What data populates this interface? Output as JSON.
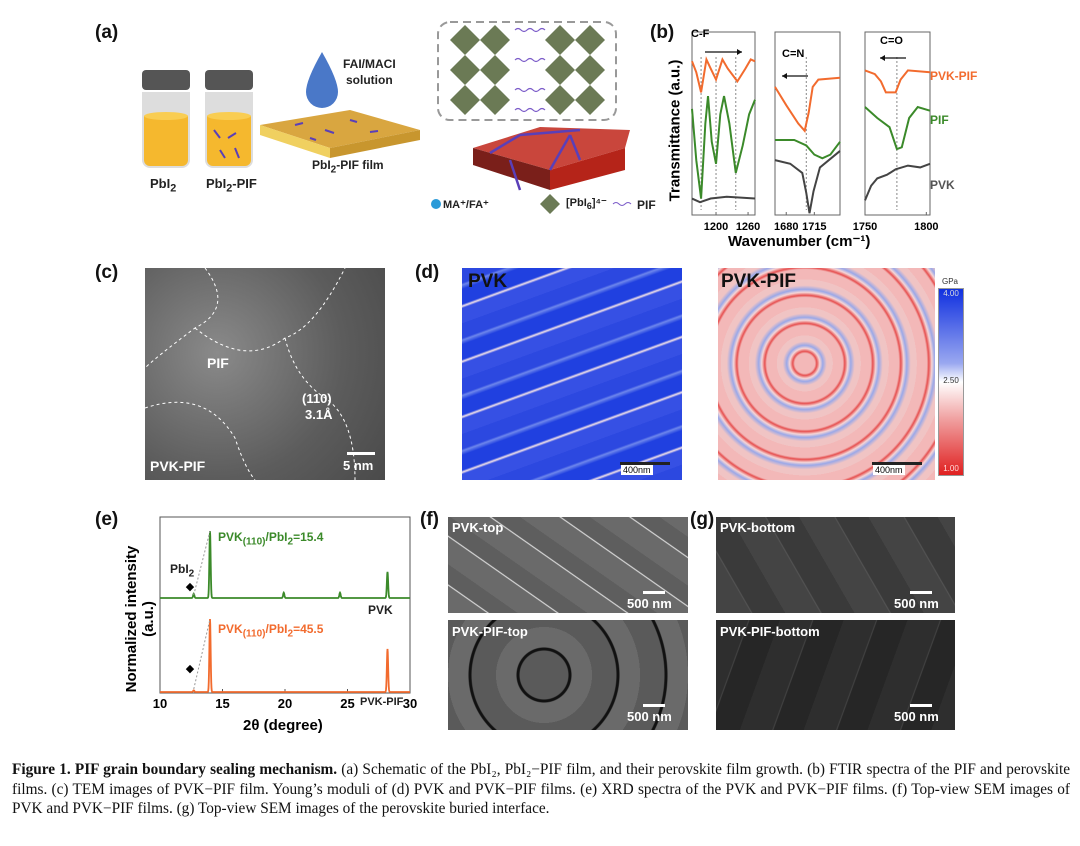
{
  "panels": {
    "a": {
      "label": "(a)",
      "vial1": "PbI",
      "vial1_sub": "2",
      "vial2": "PbI",
      "vial2_sub": "2",
      "vial2_suffix": "-PIF",
      "solution_line1": "FAI/MACI",
      "solution_line2": "solution",
      "film_prefix": "PbI",
      "film_sub": "2",
      "film_suffix": "-PIF film",
      "legend": {
        "cation": "MA⁺/FA⁺",
        "octa": "[PbI",
        "octa_sub": "6",
        "octa_sup": "]⁴⁻",
        "pif": "PIF"
      }
    },
    "b": {
      "label": "(b)",
      "ylabel": "Transmittance (a.u.)",
      "xlabel": "Wavenumber (cm⁻¹)",
      "annot": [
        "C-F",
        "C=N",
        "C=O"
      ],
      "legend": [
        "PVK-PIF",
        "PIF",
        "PVK"
      ]
    },
    "c": {
      "label": "(c)",
      "pif": "PIF",
      "plane": "(110)",
      "spacing": "3.1Å",
      "sample": "PVK-PIF",
      "scale": "5 nm"
    },
    "d": {
      "label": "(d)",
      "left_title": "PVK",
      "right_title": "PVK-PIF",
      "scale": "400nm",
      "colorbar": {
        "unit": "GPa",
        "max": "4.00",
        "mid": "2.50",
        "min": "1.00"
      }
    },
    "e": {
      "label": "(e)"
    },
    "f": {
      "label": "(f)",
      "top": "PVK-top",
      "bottom": "PVK-PIF-top",
      "scale": "500 nm"
    },
    "g": {
      "label": "(g)",
      "top": "PVK-bottom",
      "bottom": "PVK-PIF-bottom",
      "scale": "500 nm"
    }
  },
  "colors": {
    "orange": "#f26b2e",
    "green": "#3b8a2a",
    "grey": "#444444",
    "pif_purple": "#6a4fc4",
    "crystal_red": "#c0281e"
  },
  "chart_data": [
    {
      "type": "line",
      "id": "ftir",
      "ylabel": "Transmittance (a.u.)",
      "xlabel": "Wavenumber (cm⁻¹)",
      "windows": [
        {
          "annotation": "C-F",
          "shift": "right",
          "xlim": [
            1155,
            1273
          ],
          "ticks": [
            "1200",
            "1260"
          ],
          "tick_values": [
            1200,
            1260
          ],
          "markers": [
            1172,
            1200,
            1237
          ],
          "series": [
            {
              "name": "PVK-PIF",
              "color": "#f26b2e",
              "points": [
                [
                  1155,
                  8.4
                ],
                [
                  1163,
                  7.8
                ],
                [
                  1172,
                  6.7
                ],
                [
                  1182,
                  8.5
                ],
                [
                  1190,
                  8.0
                ],
                [
                  1200,
                  7.4
                ],
                [
                  1212,
                  8.5
                ],
                [
                  1222,
                  8.0
                ],
                [
                  1240,
                  7.3
                ],
                [
                  1255,
                  8.0
                ],
                [
                  1265,
                  8.5
                ],
                [
                  1273,
                  8.4
                ]
              ]
            },
            {
              "name": "PIF",
              "color": "#3b8a2a",
              "points": [
                [
                  1155,
                  5.8
                ],
                [
                  1163,
                  3.0
                ],
                [
                  1172,
                  0.9
                ],
                [
                  1180,
                  5.0
                ],
                [
                  1185,
                  6.5
                ],
                [
                  1192,
                  4.0
                ],
                [
                  1200,
                  2.8
                ],
                [
                  1208,
                  5.5
                ],
                [
                  1215,
                  6.5
                ],
                [
                  1225,
                  5.0
                ],
                [
                  1237,
                  2.3
                ],
                [
                  1250,
                  3.8
                ],
                [
                  1262,
                  5.5
                ],
                [
                  1273,
                  6.3
                ]
              ]
            },
            {
              "name": "PVK",
              "color": "#444444",
              "points": [
                [
                  1155,
                  0.9
                ],
                [
                  1170,
                  0.7
                ],
                [
                  1190,
                  0.9
                ],
                [
                  1220,
                  1.0
                ],
                [
                  1273,
                  0.9
                ]
              ]
            }
          ]
        },
        {
          "annotation": "C=N",
          "shift": "left",
          "xlim": [
            1666,
            1747
          ],
          "ticks": [
            "1680",
            "1715"
          ],
          "tick_values": [
            1680,
            1715
          ],
          "markers": [
            1705
          ],
          "series": [
            {
              "name": "PVK-PIF",
              "color": "#f26b2e",
              "points": [
                [
                  1666,
                  7.0
                ],
                [
                  1680,
                  6.0
                ],
                [
                  1695,
                  5.0
                ],
                [
                  1703,
                  4.6
                ],
                [
                  1708,
                  5.6
                ],
                [
                  1713,
                  7.0
                ],
                [
                  1720,
                  7.4
                ],
                [
                  1747,
                  7.5
                ]
              ]
            },
            {
              "name": "PIF",
              "color": "#3b8a2a",
              "points": [
                [
                  1666,
                  4.1
                ],
                [
                  1690,
                  4.1
                ],
                [
                  1705,
                  3.8
                ],
                [
                  1715,
                  3.3
                ],
                [
                  1725,
                  3.1
                ],
                [
                  1735,
                  3.3
                ],
                [
                  1747,
                  4.0
                ]
              ]
            },
            {
              "name": "PVK",
              "color": "#444444",
              "points": [
                [
                  1666,
                  3.0
                ],
                [
                  1685,
                  2.8
                ],
                [
                  1700,
                  2.3
                ],
                [
                  1705,
                  1.2
                ],
                [
                  1709,
                  0.1
                ],
                [
                  1714,
                  1.3
                ],
                [
                  1722,
                  2.6
                ],
                [
                  1747,
                  3.5
                ]
              ]
            }
          ]
        },
        {
          "annotation": "C=O",
          "shift": "left",
          "xlim": [
            1750,
            1803
          ],
          "ticks": [
            "1750",
            "1800"
          ],
          "tick_values": [
            1750,
            1800
          ],
          "markers": [
            1776
          ],
          "series": [
            {
              "name": "PVK-PIF",
              "color": "#f26b2e",
              "points": [
                [
                  1750,
                  7.9
                ],
                [
                  1758,
                  7.7
                ],
                [
                  1763,
                  7.3
                ],
                [
                  1767,
                  6.7
                ],
                [
                  1775,
                  6.7
                ],
                [
                  1779,
                  7.4
                ],
                [
                  1785,
                  7.9
                ],
                [
                  1803,
                  7.8
                ]
              ]
            },
            {
              "name": "PIF",
              "color": "#3b8a2a",
              "points": [
                [
                  1750,
                  5.9
                ],
                [
                  1760,
                  5.3
                ],
                [
                  1770,
                  4.8
                ],
                [
                  1776,
                  3.6
                ],
                [
                  1780,
                  3.7
                ],
                [
                  1786,
                  5.3
                ],
                [
                  1793,
                  5.9
                ],
                [
                  1803,
                  5.7
                ]
              ]
            },
            {
              "name": "PVK",
              "color": "#444444",
              "points": [
                [
                  1750,
                  0.8
                ],
                [
                  1755,
                  1.6
                ],
                [
                  1760,
                  2.0
                ],
                [
                  1768,
                  2.2
                ],
                [
                  1775,
                  2.5
                ],
                [
                  1785,
                  2.7
                ],
                [
                  1795,
                  2.6
                ],
                [
                  1803,
                  2.8
                ]
              ]
            }
          ]
        }
      ]
    },
    {
      "type": "line",
      "id": "xrd",
      "xlabel": "2θ (degree)",
      "ylabel": "Normalized intensity (a.u.)",
      "xlim": [
        10,
        30
      ],
      "xticks": [
        10,
        15,
        20,
        25,
        30
      ],
      "series": [
        {
          "name": "PVK",
          "color": "#3b8a2a",
          "ratio_label": "PVK",
          "ratio_sub": "(110)",
          "ratio_mid": "/PbI",
          "ratio_sub2": "2",
          "ratio_value": "=15.4",
          "pbi2_label": "PbI",
          "pbi2_sub": "2",
          "peaks": [
            [
              12.7,
              0.065
            ],
            [
              14.0,
              1.0
            ],
            [
              19.9,
              0.08
            ],
            [
              24.4,
              0.08
            ],
            [
              28.2,
              0.39
            ]
          ]
        },
        {
          "name": "PVK-PIF",
          "color": "#f26b2e",
          "ratio_label": "PVK",
          "ratio_sub": "(110)",
          "ratio_mid": "/PbI",
          "ratio_sub2": "2",
          "ratio_value": "=45.5",
          "peaks": [
            [
              12.7,
              0.022
            ],
            [
              14.0,
              1.0
            ],
            [
              28.2,
              0.59
            ]
          ]
        }
      ]
    }
  ],
  "caption": {
    "lead": "Figure 1. PIF grain boundary sealing mechanism.",
    "body": " (a) Schematic of the PbI₂, PbI₂−PIF film, and their perovskite film growth. (b) FTIR spectra of the PIF and perovskite films. (c) TEM images of PVK−PIF film. Young’s moduli of (d) PVK and PVK−PIF films. (e) XRD spectra of the PVK and PVK−PIF films. (f) Top-view SEM images of PVK and PVK−PIF films. (g) Top-view SEM images of the perovskite buried interface."
  }
}
